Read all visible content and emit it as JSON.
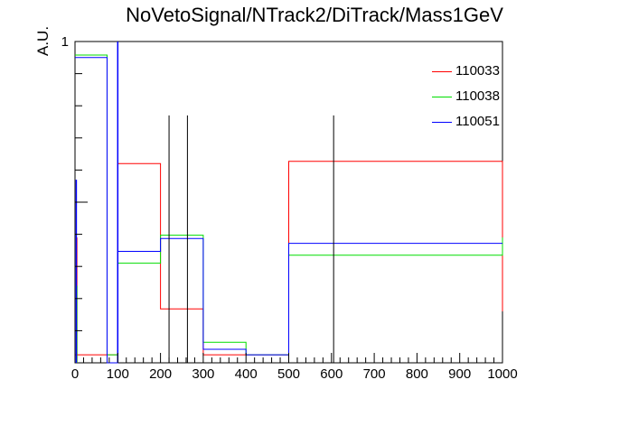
{
  "title": "NoVetoSignal/NTrack2/DiTrack/Mass1GeV",
  "chart_data": {
    "type": "line",
    "title": "NoVetoSignal/NTrack2/DiTrack/Mass1GeV",
    "xlabel": "",
    "ylabel": "A.U.",
    "xlim": [
      0,
      1000
    ],
    "ylim": [
      0,
      1.0
    ],
    "x_ticks": [
      0,
      100,
      200,
      300,
      400,
      500,
      600,
      700,
      800,
      900,
      1000
    ],
    "y_tick_labels": [
      {
        "value": 1,
        "label": "1"
      }
    ],
    "legend_position": "top-right",
    "grid": false,
    "series": [
      {
        "name": "110033",
        "color": "#ff0000",
        "bins": [
          {
            "x0": 0,
            "x1": 100,
            "y": 0.025
          },
          {
            "x0": 100,
            "x1": 200,
            "y": 0.62
          },
          {
            "x0": 200,
            "x1": 300,
            "y": 0.168
          },
          {
            "x0": 300,
            "x1": 500,
            "y": 0.025
          },
          {
            "x0": 500,
            "x1": 1000,
            "y": 0.627
          }
        ],
        "spikes": [
          {
            "x": 4,
            "y": 0.39
          }
        ],
        "end_drop_to": 0.16
      },
      {
        "name": "110038",
        "color": "#00dd00",
        "bins": [
          {
            "x0": 0,
            "x1": 75,
            "y": 0.958
          },
          {
            "x0": 75,
            "x1": 100,
            "y": 0.025
          },
          {
            "x0": 100,
            "x1": 200,
            "y": 0.31
          },
          {
            "x0": 200,
            "x1": 300,
            "y": 0.397
          },
          {
            "x0": 300,
            "x1": 400,
            "y": 0.064
          },
          {
            "x0": 400,
            "x1": 500,
            "y": 0.025
          },
          {
            "x0": 500,
            "x1": 1000,
            "y": 0.335
          }
        ],
        "spikes": [
          {
            "x": 4,
            "y": 0.24
          }
        ],
        "end_drop_to": 0.39
      },
      {
        "name": "110051",
        "color": "#0000ff",
        "bins": [
          {
            "x0": 0,
            "x1": 75,
            "y": 0.95
          },
          {
            "x0": 75,
            "x1": 100,
            "y": 0.0
          },
          {
            "x0": 100,
            "x1": 200,
            "y": 0.347
          },
          {
            "x0": 200,
            "x1": 300,
            "y": 0.387
          },
          {
            "x0": 300,
            "x1": 400,
            "y": 0.042
          },
          {
            "x0": 400,
            "x1": 500,
            "y": 0.025
          },
          {
            "x0": 500,
            "x1": 1000,
            "y": 0.372
          }
        ],
        "spikes": [
          {
            "x": 3,
            "y": 0.57
          },
          {
            "x": 100,
            "y": 1.0
          }
        ],
        "end_drop_to": 0.372
      }
    ],
    "vertical_markers": {
      "color": "#000000",
      "x": [
        220,
        263,
        605
      ],
      "y_top": 0.77
    }
  }
}
